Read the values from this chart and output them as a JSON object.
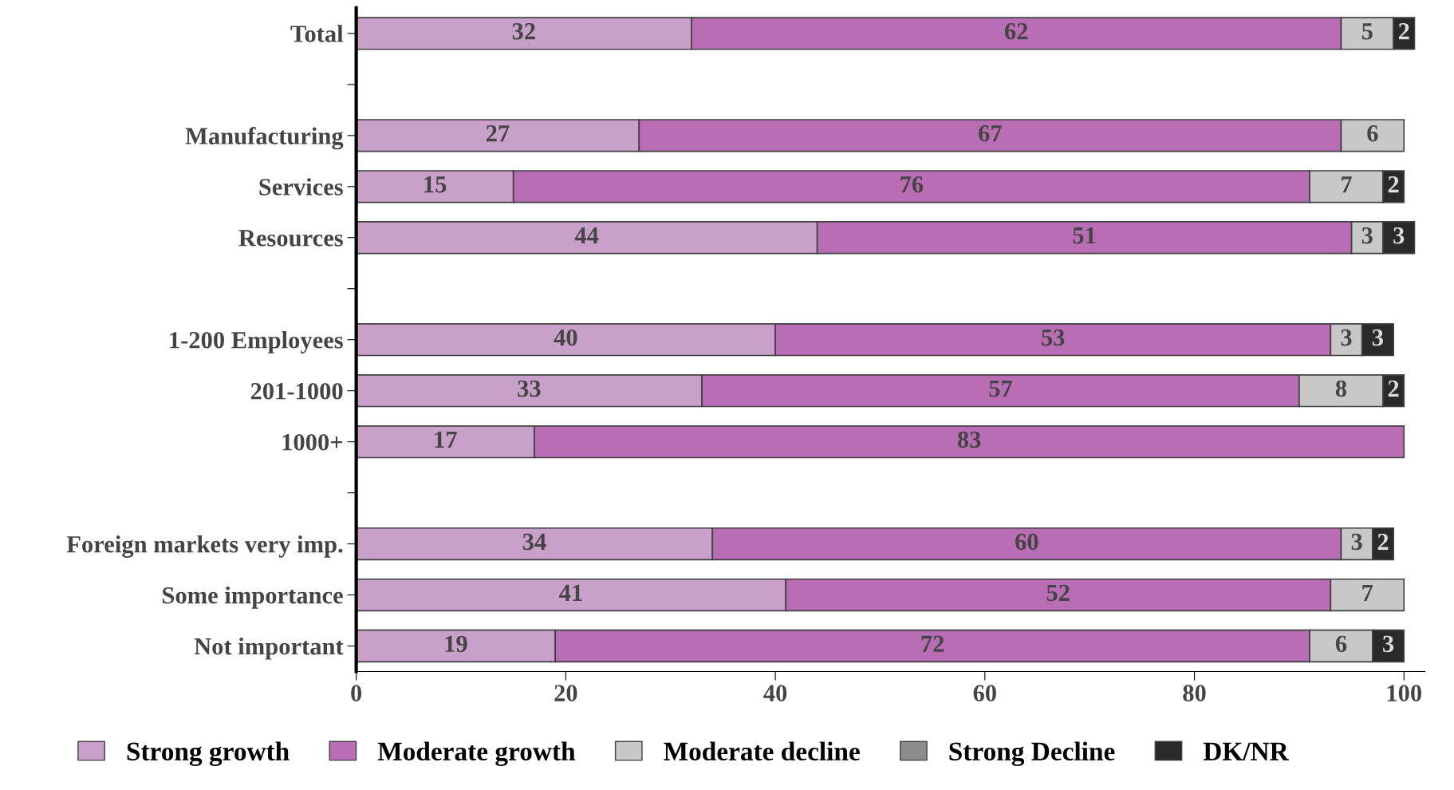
{
  "chart_data": {
    "type": "bar",
    "orientation": "horizontal",
    "stacked": true,
    "data_labels": true,
    "categories": [
      "Total",
      null,
      "Manufacturing",
      "Services",
      "Resources",
      null,
      "1-200 Employees",
      "201-1000",
      "1000+",
      null,
      "Foreign markets very imp.",
      "Some importance",
      "Not important"
    ],
    "series": [
      {
        "name": "Strong growth",
        "color": "#c9a0c9",
        "values": [
          32,
          null,
          27,
          15,
          44,
          null,
          40,
          33,
          17,
          null,
          34,
          41,
          19
        ]
      },
      {
        "name": "Moderate growth",
        "color": "#b96db5",
        "values": [
          62,
          null,
          67,
          76,
          51,
          null,
          53,
          57,
          83,
          null,
          60,
          52,
          72
        ]
      },
      {
        "name": "Moderate decline",
        "color": "#c8c8c8",
        "values": [
          5,
          null,
          6,
          7,
          3,
          null,
          3,
          8,
          null,
          null,
          3,
          7,
          6
        ]
      },
      {
        "name": "Strong Decline",
        "color": "#8c8c8c",
        "values": [
          null,
          null,
          null,
          null,
          null,
          null,
          null,
          null,
          null,
          null,
          null,
          null,
          null
        ]
      },
      {
        "name": "DK/NR",
        "color": "#2a2a2a",
        "values": [
          2,
          null,
          null,
          2,
          3,
          null,
          3,
          2,
          null,
          null,
          2,
          null,
          3
        ]
      }
    ],
    "xlim": [
      0,
      102
    ],
    "xticks": [
      0,
      20,
      40,
      60,
      80,
      100
    ],
    "grid": false,
    "legend": "bottom"
  }
}
